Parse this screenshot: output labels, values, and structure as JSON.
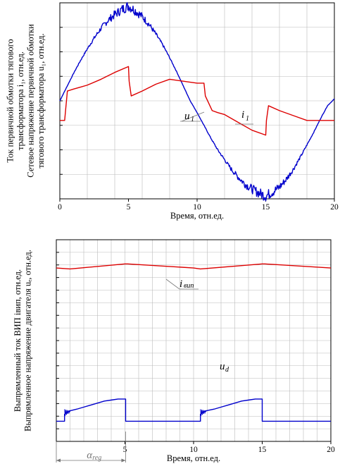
{
  "chart_data": [
    {
      "type": "line",
      "xlabel": "Время, отн.ед.",
      "ylabel_lines": [
        "Ток первичной обмотки тягового",
        "трансформатора i₁, отн.ед.",
        "Сетевое напряжение первичной обмотки",
        "тягового трансформатора u₁, отн.ед."
      ],
      "xlim": [
        0,
        20
      ],
      "ylim": [
        -1,
        1
      ],
      "x_ticks": [
        "0",
        "5",
        "10",
        "15",
        "20"
      ],
      "grid": true,
      "annotations": [
        {
          "text": "u",
          "sub": "1",
          "series": "u1"
        },
        {
          "text": "i",
          "sub": "1",
          "series": "i1"
        }
      ],
      "series": [
        {
          "key": "u1",
          "color": "#0000cc",
          "noisy": true,
          "x": [
            0,
            0.5,
            1,
            1.5,
            2,
            2.5,
            3,
            3.5,
            4,
            4.5,
            5,
            5.5,
            6,
            6.5,
            7,
            7.5,
            8,
            8.5,
            9,
            9.5,
            10,
            10.5,
            11,
            11.5,
            12,
            12.5,
            13,
            13.5,
            14,
            14.5,
            15,
            15.5,
            16,
            16.5,
            17,
            17.5,
            18,
            18.5,
            19,
            19.5,
            20
          ],
          "y": [
            0.0,
            0.14,
            0.28,
            0.41,
            0.53,
            0.64,
            0.74,
            0.82,
            0.88,
            0.93,
            0.97,
            0.92,
            0.86,
            0.78,
            0.68,
            0.57,
            0.44,
            0.3,
            0.15,
            0.0,
            -0.12,
            -0.25,
            -0.38,
            -0.5,
            -0.6,
            -0.7,
            -0.78,
            -0.85,
            -0.9,
            -0.94,
            -0.97,
            -0.93,
            -0.88,
            -0.8,
            -0.7,
            -0.58,
            -0.45,
            -0.32,
            -0.18,
            -0.05,
            0.02
          ]
        },
        {
          "key": "i1",
          "color": "#dd0000",
          "noisy": false,
          "x": [
            0,
            0.35,
            0.55,
            1.0,
            1.5,
            2,
            3,
            4,
            5,
            5.05,
            5.2,
            6,
            7,
            8,
            9,
            10,
            10.5,
            10.6,
            11.1,
            11.5,
            12,
            13,
            14,
            15,
            15.05,
            15.2,
            16,
            17,
            18,
            19,
            20
          ],
          "y": [
            -0.2,
            -0.2,
            0.1,
            0.12,
            0.14,
            0.16,
            0.22,
            0.29,
            0.35,
            0.2,
            0.05,
            0.1,
            0.17,
            0.22,
            0.2,
            0.18,
            0.18,
            0.05,
            -0.1,
            -0.12,
            -0.14,
            -0.22,
            -0.3,
            -0.35,
            -0.2,
            -0.05,
            -0.1,
            -0.15,
            -0.2,
            -0.2,
            -0.2
          ]
        }
      ]
    },
    {
      "type": "line",
      "xlabel": "Время, отн.ед.",
      "ylabel_lines": [
        "Выпрямленный ток ВИП iвип, отн.ед.",
        "Выпрямленное напряжение двигателя uₑ, отн.ед."
      ],
      "xlim": [
        0,
        20
      ],
      "ylim": [
        0,
        1
      ],
      "x_ticks": [
        "5",
        "10",
        "15",
        "20"
      ],
      "grid": true,
      "annotations": [
        {
          "text": "i",
          "sub": "вип",
          "series": "ivip"
        },
        {
          "text": "u",
          "sub": "d",
          "series": "ud"
        },
        {
          "text": "α",
          "sub": "reg",
          "series": "alpha"
        }
      ],
      "series": [
        {
          "key": "ivip",
          "color": "#dd0000",
          "x": [
            0,
            1,
            5,
            5.2,
            10,
            10.5,
            15,
            15.2,
            20
          ],
          "y": [
            0.86,
            0.855,
            0.88,
            0.88,
            0.86,
            0.855,
            0.88,
            0.88,
            0.86
          ]
        },
        {
          "key": "ud",
          "color": "#0000cc",
          "x": [
            0,
            0.6,
            0.6,
            0.9,
            1.5,
            2,
            2.5,
            3,
            3.5,
            4,
            4.5,
            5.05,
            5.05,
            10.5,
            10.5,
            10.8,
            11.5,
            12,
            12.5,
            13,
            13.5,
            14,
            14.5,
            15.0,
            15.0,
            20
          ],
          "y": [
            0.1,
            0.1,
            0.135,
            0.15,
            0.16,
            0.17,
            0.18,
            0.19,
            0.2,
            0.205,
            0.21,
            0.21,
            0.1,
            0.1,
            0.135,
            0.15,
            0.16,
            0.17,
            0.18,
            0.19,
            0.2,
            0.205,
            0.21,
            0.21,
            0.1,
            0.1
          ]
        }
      ],
      "alpha_reg": [
        0,
        5.05
      ]
    }
  ]
}
